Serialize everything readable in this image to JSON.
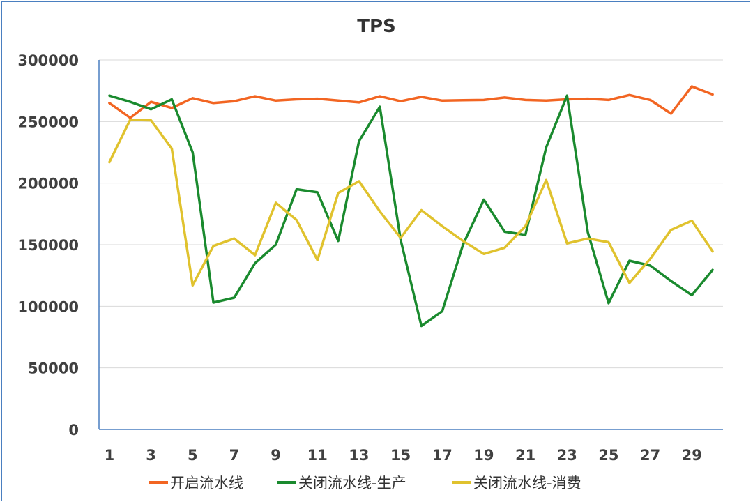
{
  "chart_data": {
    "type": "line",
    "title": "TPS",
    "xlabel": "",
    "ylabel": "",
    "x": [
      1,
      2,
      3,
      4,
      5,
      6,
      7,
      8,
      9,
      10,
      11,
      12,
      13,
      14,
      15,
      16,
      17,
      18,
      19,
      20,
      21,
      22,
      23,
      24,
      25,
      26,
      27,
      28,
      29,
      30
    ],
    "x_tick_labels": [
      "1",
      "3",
      "5",
      "7",
      "9",
      "11",
      "13",
      "15",
      "17",
      "19",
      "21",
      "23",
      "25",
      "27",
      "29"
    ],
    "ylim": [
      0,
      300000
    ],
    "y_ticks": [
      0,
      50000,
      100000,
      150000,
      200000,
      250000,
      300000
    ],
    "y_tick_labels": [
      "0",
      "50000",
      "100000",
      "150000",
      "200000",
      "250000",
      "300000"
    ],
    "grid": "horizontal",
    "legend_position": "bottom",
    "series": [
      {
        "name": "开启流水线",
        "color": "#f26522",
        "values": [
          265000,
          253000,
          266000,
          261000,
          269000,
          265000,
          266500,
          270500,
          267000,
          268000,
          268500,
          267000,
          265500,
          270500,
          266500,
          270000,
          267000,
          267300,
          267500,
          269500,
          267500,
          267000,
          268000,
          268500,
          267500,
          271500,
          267500,
          256500,
          278500,
          272000
        ]
      },
      {
        "name": "关闭流水线-生产",
        "color": "#1a8a2e",
        "values": [
          271000,
          266000,
          260000,
          268000,
          225000,
          103000,
          107000,
          135000,
          150000,
          195000,
          192500,
          153000,
          234000,
          262000,
          154000,
          84000,
          96000,
          150000,
          186500,
          160500,
          158000,
          229000,
          271000,
          160000,
          102500,
          137000,
          133000,
          120500,
          109000,
          129500
        ]
      },
      {
        "name": "关闭流水线-消费",
        "color": "#e0c22e",
        "values": [
          217000,
          251500,
          251000,
          228000,
          117000,
          149000,
          155000,
          141500,
          184000,
          170000,
          137500,
          192000,
          201500,
          177000,
          155500,
          178000,
          165000,
          153000,
          142500,
          147500,
          165000,
          202500,
          151000,
          155000,
          152000,
          119000,
          138500,
          162000,
          169500,
          144500
        ]
      }
    ]
  }
}
